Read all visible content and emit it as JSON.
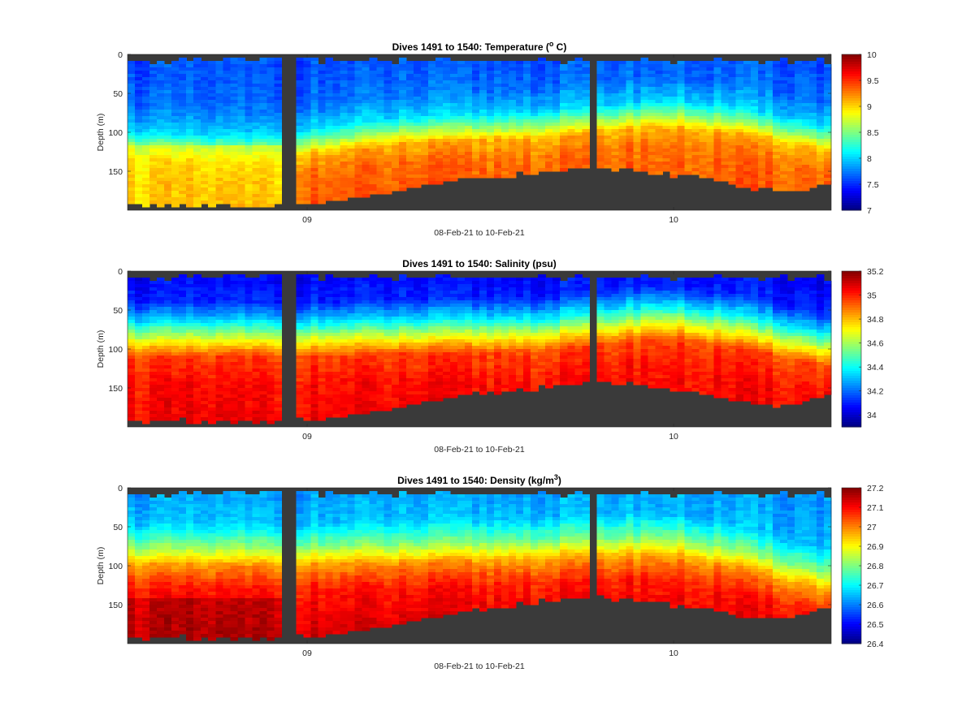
{
  "figure": {
    "bottom_color": "#3a3a3a",
    "colormap": "jet"
  },
  "chart_data": [
    {
      "type": "heatmap",
      "title_main": "Dives 1491 to 1540: Temperature (",
      "title_sup": "o",
      "title_tail": " C)",
      "xlabel": "08-Feb-21 to 10-Feb-21",
      "ylabel": "Depth (m)",
      "x_range_days": [
        0.36,
        2.28
      ],
      "x_ticks": [
        {
          "day": 0.85,
          "label": "09"
        },
        {
          "day": 1.85,
          "label": "10"
        }
      ],
      "ylim": [
        0,
        200
      ],
      "y_reversed": true,
      "y_ticks": [
        0,
        50,
        100,
        150
      ],
      "colorbar": {
        "min": 7,
        "max": 10,
        "ticks": [
          7,
          7.5,
          8,
          8.5,
          9,
          9.5,
          10
        ]
      },
      "surface_value": 7.6,
      "profile_knots": [
        {
          "depth": 0,
          "value": 7.6
        },
        {
          "depth": 40,
          "value": 7.7
        },
        {
          "depth": 70,
          "value": 8.0
        },
        {
          "depth": 90,
          "value": 8.6
        },
        {
          "depth": 105,
          "value": 9.1
        },
        {
          "depth": 130,
          "value": 9.3
        },
        {
          "depth": 200,
          "value": 9.4
        }
      ],
      "thermocline_depth": [
        {
          "day": 0.36,
          "depth": 118
        },
        {
          "day": 0.7,
          "depth": 125
        },
        {
          "day": 0.85,
          "depth": 115
        },
        {
          "day": 1.1,
          "depth": 100
        },
        {
          "day": 1.5,
          "depth": 92
        },
        {
          "day": 1.8,
          "depth": 78
        },
        {
          "day": 2.0,
          "depth": 85
        },
        {
          "day": 2.28,
          "depth": 112
        }
      ],
      "seafloor_depth": [
        {
          "day": 0.36,
          "depth": 192
        },
        {
          "day": 0.8,
          "depth": 194
        },
        {
          "day": 0.93,
          "depth": 190
        },
        {
          "day": 1.2,
          "depth": 166
        },
        {
          "day": 1.55,
          "depth": 148
        },
        {
          "day": 1.75,
          "depth": 148
        },
        {
          "day": 1.9,
          "depth": 158
        },
        {
          "day": 2.1,
          "depth": 173
        },
        {
          "day": 2.28,
          "depth": 170
        }
      ],
      "data_gaps": [
        {
          "start": 0.775,
          "end": 0.825
        },
        {
          "start": 1.63,
          "end": 1.645
        }
      ],
      "anomaly": {
        "day_range": [
          0.36,
          0.78
        ],
        "depth_from": 118,
        "value": 8.8
      }
    },
    {
      "type": "heatmap",
      "title_main": "Dives 1491 to 1540: Salinity (psu)",
      "title_sup": "",
      "title_tail": "",
      "xlabel": "08-Feb-21 to 10-Feb-21",
      "ylabel": "Depth (m)",
      "x_range_days": [
        0.36,
        2.28
      ],
      "x_ticks": [
        {
          "day": 0.85,
          "label": "09"
        },
        {
          "day": 1.85,
          "label": "10"
        }
      ],
      "ylim": [
        0,
        200
      ],
      "y_reversed": true,
      "y_ticks": [
        0,
        50,
        100,
        150
      ],
      "colorbar": {
        "min": 33.9,
        "max": 35.2,
        "ticks": [
          34,
          34.2,
          34.4,
          34.6,
          34.8,
          35,
          35.2
        ]
      },
      "surface_value": 34.05,
      "profile_knots": [
        {
          "depth": 0,
          "value": 34.05
        },
        {
          "depth": 35,
          "value": 34.1
        },
        {
          "depth": 60,
          "value": 34.35
        },
        {
          "depth": 85,
          "value": 34.7
        },
        {
          "depth": 105,
          "value": 34.95
        },
        {
          "depth": 140,
          "value": 35.02
        },
        {
          "depth": 200,
          "value": 35.05
        }
      ],
      "thermocline_depth": [
        {
          "day": 0.36,
          "depth": 95
        },
        {
          "day": 0.85,
          "depth": 95
        },
        {
          "day": 1.5,
          "depth": 88
        },
        {
          "day": 1.8,
          "depth": 72
        },
        {
          "day": 2.0,
          "depth": 82
        },
        {
          "day": 2.28,
          "depth": 110
        }
      ],
      "seafloor_depth": [
        {
          "day": 0.36,
          "depth": 192
        },
        {
          "day": 0.8,
          "depth": 192
        },
        {
          "day": 0.93,
          "depth": 190
        },
        {
          "day": 1.2,
          "depth": 165
        },
        {
          "day": 1.55,
          "depth": 145
        },
        {
          "day": 1.75,
          "depth": 145
        },
        {
          "day": 1.9,
          "depth": 158
        },
        {
          "day": 2.1,
          "depth": 172
        },
        {
          "day": 2.28,
          "depth": 162
        }
      ],
      "data_gaps": [
        {
          "start": 0.775,
          "end": 0.825
        },
        {
          "start": 1.63,
          "end": 1.645
        }
      ],
      "anomaly": null
    },
    {
      "type": "heatmap",
      "title_main": "Dives 1491 to 1540: Density (kg/m",
      "title_sup": "3",
      "title_tail": ")",
      "xlabel": "08-Feb-21 to 10-Feb-21",
      "ylabel": "Depth (m)",
      "x_range_days": [
        0.36,
        2.28
      ],
      "x_ticks": [
        {
          "day": 0.85,
          "label": "09"
        },
        {
          "day": 1.85,
          "label": "10"
        }
      ],
      "ylim": [
        0,
        200
      ],
      "y_reversed": true,
      "y_ticks": [
        0,
        50,
        100,
        150
      ],
      "colorbar": {
        "min": 26.4,
        "max": 27.2,
        "ticks": [
          26.4,
          26.5,
          26.6,
          26.7,
          26.8,
          26.9,
          27,
          27.1,
          27.2
        ]
      },
      "surface_value": 26.62,
      "profile_knots": [
        {
          "depth": 0,
          "value": 26.62
        },
        {
          "depth": 40,
          "value": 26.65
        },
        {
          "depth": 70,
          "value": 26.8
        },
        {
          "depth": 95,
          "value": 26.98
        },
        {
          "depth": 125,
          "value": 27.08
        },
        {
          "depth": 170,
          "value": 27.12
        },
        {
          "depth": 200,
          "value": 27.14
        }
      ],
      "thermocline_depth": [
        {
          "day": 0.36,
          "depth": 95
        },
        {
          "day": 0.85,
          "depth": 95
        },
        {
          "day": 1.5,
          "depth": 88
        },
        {
          "day": 1.8,
          "depth": 82
        },
        {
          "day": 2.0,
          "depth": 95
        },
        {
          "day": 2.28,
          "depth": 130
        }
      ],
      "seafloor_depth": [
        {
          "day": 0.36,
          "depth": 192
        },
        {
          "day": 0.8,
          "depth": 192
        },
        {
          "day": 0.93,
          "depth": 190
        },
        {
          "day": 1.2,
          "depth": 165
        },
        {
          "day": 1.55,
          "depth": 142
        },
        {
          "day": 1.75,
          "depth": 142
        },
        {
          "day": 1.9,
          "depth": 155
        },
        {
          "day": 2.1,
          "depth": 168
        },
        {
          "day": 2.28,
          "depth": 155
        }
      ],
      "data_gaps": [
        {
          "start": 0.775,
          "end": 0.825
        },
        {
          "start": 1.63,
          "end": 1.645
        }
      ],
      "anomaly": {
        "day_range": [
          0.36,
          0.78
        ],
        "depth_from": 140,
        "value": 27.17
      }
    }
  ]
}
